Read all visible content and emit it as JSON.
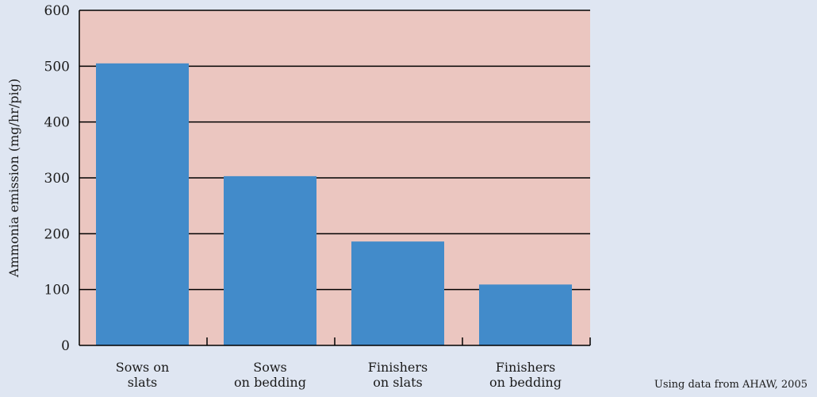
{
  "chart_data": {
    "type": "bar",
    "categories": [
      [
        "Sows on",
        "slats"
      ],
      [
        "Sows",
        "on bedding"
      ],
      [
        "Finishers",
        "on slats"
      ],
      [
        "Finishers",
        "on bedding"
      ]
    ],
    "values": [
      505,
      303,
      186,
      109
    ],
    "ylabel": "Ammonia emission (mg/hr/pig)",
    "ylim": [
      0,
      600
    ],
    "yticks": [
      0,
      100,
      200,
      300,
      400,
      500,
      600
    ],
    "grid": true,
    "source": "Using data from AHAW, 2005",
    "colors": {
      "bar": "#428bca",
      "plot_background": "#ebc6c0",
      "page_background": "#dfe6f2",
      "grid": "#000000"
    }
  }
}
